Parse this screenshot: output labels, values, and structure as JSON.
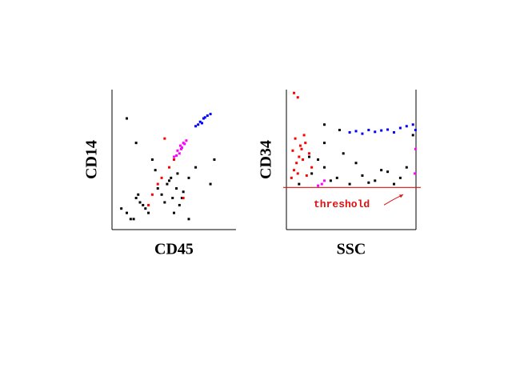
{
  "chart_data": [
    {
      "type": "scatter",
      "x_label": "CD45",
      "y_label": "CD14",
      "xscale": "log",
      "yscale": "log",
      "xlim": [
        1,
        10000
      ],
      "ylim": [
        1,
        10000
      ],
      "series": [
        {
          "color": "#000000",
          "x": [
            3,
            5,
            8,
            12,
            6,
            4,
            10,
            15,
            2,
            7,
            40,
            60,
            90,
            120,
            150,
            200,
            80,
            50,
            100,
            70,
            180,
            130,
            30,
            25,
            300,
            500,
            20,
            6,
            3,
            2000,
            300,
            1500
          ],
          "values": [
            3,
            2,
            6,
            4,
            8,
            2,
            5,
            3,
            4,
            10,
            10,
            20,
            8,
            15,
            5,
            12,
            30,
            6,
            3,
            25,
            8,
            40,
            15,
            50,
            2,
            60,
            100,
            300,
            1500,
            100,
            30,
            20
          ]
        },
        {
          "color": "#ff00ff",
          "x": [
            100,
            130,
            160,
            200,
            250,
            150,
            180,
            220,
            120,
            170
          ],
          "values": [
            120,
            180,
            250,
            300,
            350,
            150,
            220,
            280,
            130,
            200
          ]
        },
        {
          "color": "#0000ff",
          "x": [
            500,
            700,
            900,
            1200,
            1500,
            800,
            1000,
            600
          ],
          "values": [
            900,
            1200,
            1500,
            1800,
            2000,
            1100,
            1600,
            1000
          ]
        },
        {
          "color": "#ff0000",
          "x": [
            20,
            40,
            70,
            30,
            100,
            15,
            50,
            200
          ],
          "values": [
            10,
            30,
            60,
            20,
            100,
            5,
            400,
            8
          ]
        }
      ]
    },
    {
      "type": "scatter",
      "x_label": "SSC",
      "y_label": "CD34",
      "xscale": "linear",
      "yscale": "log",
      "xlim": [
        0,
        1024
      ],
      "ylim": [
        1,
        10000
      ],
      "threshold": {
        "value": 16,
        "label": "threshold",
        "color": "#e01010"
      },
      "series": [
        {
          "color": "#000000",
          "x": [
            100,
            200,
            250,
            300,
            350,
            400,
            450,
            500,
            600,
            700,
            800,
            900,
            950,
            1000,
            550,
            650,
            300,
            750,
            850,
            300,
            420,
            180
          ],
          "values": [
            20,
            40,
            100,
            60,
            25,
            30,
            150,
            20,
            35,
            25,
            45,
            30,
            60,
            500,
            80,
            22,
            300,
            50,
            20,
            1000,
            700,
            120
          ]
        },
        {
          "color": "#ff0000",
          "x": [
            40,
            60,
            80,
            100,
            120,
            150,
            180,
            200,
            70,
            90,
            110,
            130,
            160,
            50,
            140,
            60,
            90
          ],
          "values": [
            30,
            50,
            80,
            120,
            200,
            300,
            150,
            60,
            400,
            40,
            250,
            100,
            35,
            180,
            500,
            8000,
            6000
          ]
        },
        {
          "color": "#0000ff",
          "x": [
            500,
            550,
            600,
            650,
            700,
            750,
            800,
            850,
            900,
            950,
            1000,
            1020
          ],
          "values": [
            600,
            650,
            550,
            700,
            620,
            680,
            720,
            600,
            800,
            900,
            1000,
            700
          ]
        },
        {
          "color": "#ff00ff",
          "x": [
            250,
            280,
            300,
            1015,
            1020
          ],
          "values": [
            18,
            20,
            25,
            40,
            200
          ]
        }
      ]
    }
  ]
}
